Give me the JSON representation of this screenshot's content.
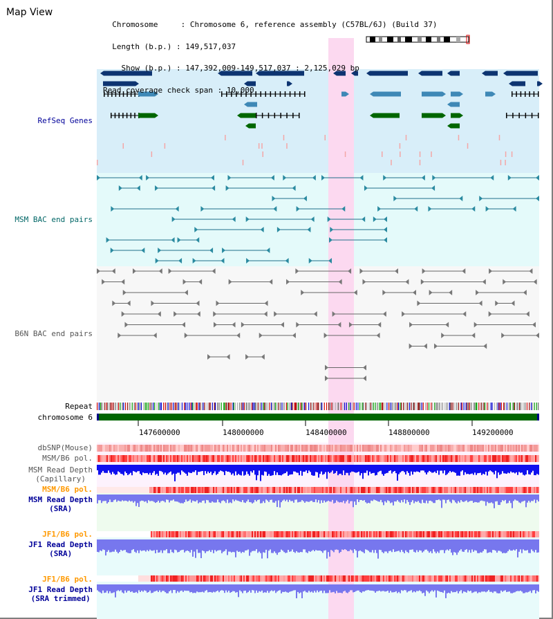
{
  "window": {
    "title": "Map View"
  },
  "info": {
    "chromosome_key": "Chromosome",
    "chromosome_val": "Chromosome 6, reference assembly (C57BL/6J) (Build 37)",
    "length_key": "Length (b.p.)",
    "length_val": "149,517,037",
    "show_key": "Show (b.p.)",
    "show_val": "147,392,009-149,517,037 : 2,125,029 bp",
    "coverage_key": "Read coverage check span",
    "coverage_val": "10,000"
  },
  "tracks": {
    "refseq": "RefSeq Genes",
    "msm_bac": "MSM BAC end pairs",
    "b6n_bac": "B6N BAC end pairs",
    "repeat": "Repeat",
    "chromosome": "chromosome 6",
    "dbsnp": "dbSNP(Mouse)",
    "msm_pol_1": "MSM/B6 pol.",
    "msm_depth_cap_1": "MSM Read Depth",
    "msm_depth_cap_2": "(Capillary)",
    "msm_pol_2": "MSM/B6 pol.",
    "msm_depth_sra_1": "MSM Read Depth",
    "msm_depth_sra_2": "(SRA)",
    "jf1_pol_1": "JF1/B6 pol.",
    "jf1_depth_1": "JF1 Read Depth",
    "jf1_depth_2": "(SRA)",
    "jf1_pol_2": "JF1/B6 pol.",
    "jf1_trim_1": "JF1 Read Depth",
    "jf1_trim_2": "(SRA trimmed)"
  },
  "axis": {
    "ticks": [
      "147600000",
      "148000000",
      "148400000",
      "148800000",
      "149200000"
    ]
  },
  "colors": {
    "refseq_bg": "#d8eef9",
    "msm_bac_bg": "#e4fafa",
    "b6n_bac_bg": "#f7f7f7",
    "highlight": "#fcd9f0",
    "gene_dark": "#0d3471",
    "gene_mid": "#3e88b6",
    "gene_green": "#006600",
    "msm_bac_line": "#1e6e8a",
    "b6n_bac_line": "#666666",
    "chromosome_bar": "#006600",
    "snp_pink": "#f4a6a6",
    "depth_blue": "#1010ee",
    "depth_light_blue": "#7777ee",
    "label_blue": "#000099",
    "label_orange": "#ff9900"
  }
}
